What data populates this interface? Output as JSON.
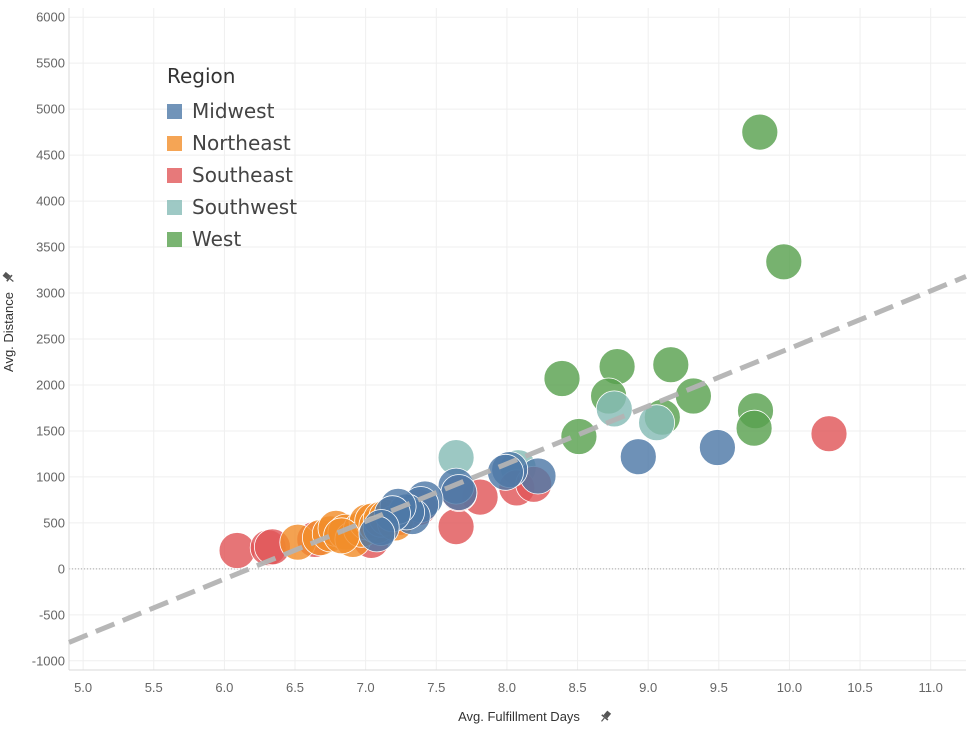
{
  "chart_data": {
    "type": "scatter",
    "xlabel": "Avg. Fulfillment Days",
    "ylabel": "Avg. Distance",
    "xlim": [
      4.9,
      11.25
    ],
    "ylim": [
      -1100,
      6100
    ],
    "x_ticks": [
      "5.0",
      "5.5",
      "6.0",
      "6.5",
      "7.0",
      "7.5",
      "8.0",
      "8.5",
      "9.0",
      "9.5",
      "10.0",
      "10.5",
      "11.0"
    ],
    "y_ticks": [
      "6000",
      "5500",
      "5000",
      "4500",
      "4000",
      "3500",
      "3000",
      "2500",
      "2000",
      "1500",
      "1000",
      "500",
      "0",
      "-500",
      "-1000"
    ],
    "grid": true,
    "zero_line": true,
    "legend": {
      "title": "Region",
      "placement": "top-left",
      "items": [
        "Midwest",
        "Northeast",
        "Southeast",
        "Southwest",
        "West"
      ]
    },
    "trend_line": {
      "style": "dashed",
      "color": "#b3b3b3",
      "points": [
        [
          4.9,
          -800
        ],
        [
          11.25,
          3180
        ]
      ]
    },
    "series": [
      {
        "name": "West",
        "color": "#59a14f",
        "points": [
          [
            9.79,
            4750
          ],
          [
            9.96,
            3340
          ],
          [
            8.39,
            2070
          ],
          [
            8.78,
            2200
          ],
          [
            9.16,
            2220
          ],
          [
            8.72,
            1880
          ],
          [
            9.32,
            1880
          ],
          [
            9.1,
            1650
          ],
          [
            9.76,
            1720
          ],
          [
            9.75,
            1530
          ],
          [
            8.51,
            1440
          ]
        ]
      },
      {
        "name": "Southwest",
        "color": "#86bcb6",
        "points": [
          [
            7.64,
            1210
          ],
          [
            8.76,
            1740
          ],
          [
            9.06,
            1590
          ],
          [
            8.08,
            1100
          ]
        ]
      },
      {
        "name": "Southeast",
        "color": "#e15759",
        "points": [
          [
            10.28,
            1470
          ],
          [
            7.64,
            460
          ],
          [
            7.81,
            780
          ],
          [
            8.07,
            880
          ],
          [
            8.19,
            920
          ],
          [
            7.66,
            820
          ],
          [
            6.09,
            200
          ],
          [
            6.31,
            230
          ],
          [
            6.34,
            240
          ],
          [
            6.64,
            320
          ],
          [
            7.04,
            310
          ],
          [
            7.24,
            560
          ],
          [
            7.38,
            670
          ],
          [
            7.17,
            580
          ]
        ]
      },
      {
        "name": "Northeast",
        "color": "#f28e2b",
        "points": [
          [
            6.52,
            290
          ],
          [
            6.68,
            340
          ],
          [
            6.75,
            380
          ],
          [
            6.79,
            440
          ],
          [
            6.86,
            400
          ],
          [
            6.91,
            320
          ],
          [
            6.97,
            430
          ],
          [
            7.01,
            510
          ],
          [
            7.05,
            520
          ],
          [
            6.83,
            360
          ],
          [
            7.08,
            470
          ],
          [
            7.11,
            540
          ],
          [
            7.15,
            560
          ],
          [
            7.21,
            500
          ]
        ]
      },
      {
        "name": "Midwest",
        "color": "#4e79a7",
        "points": [
          [
            9.49,
            1320
          ],
          [
            8.93,
            1220
          ],
          [
            8.22,
            1010
          ],
          [
            8.02,
            1080
          ],
          [
            7.99,
            1050
          ],
          [
            7.64,
            900
          ],
          [
            7.66,
            830
          ],
          [
            7.42,
            760
          ],
          [
            7.39,
            700
          ],
          [
            7.33,
            570
          ],
          [
            7.29,
            620
          ],
          [
            7.23,
            680
          ],
          [
            7.19,
            600
          ],
          [
            7.11,
            450
          ],
          [
            7.08,
            380
          ]
        ]
      }
    ]
  }
}
